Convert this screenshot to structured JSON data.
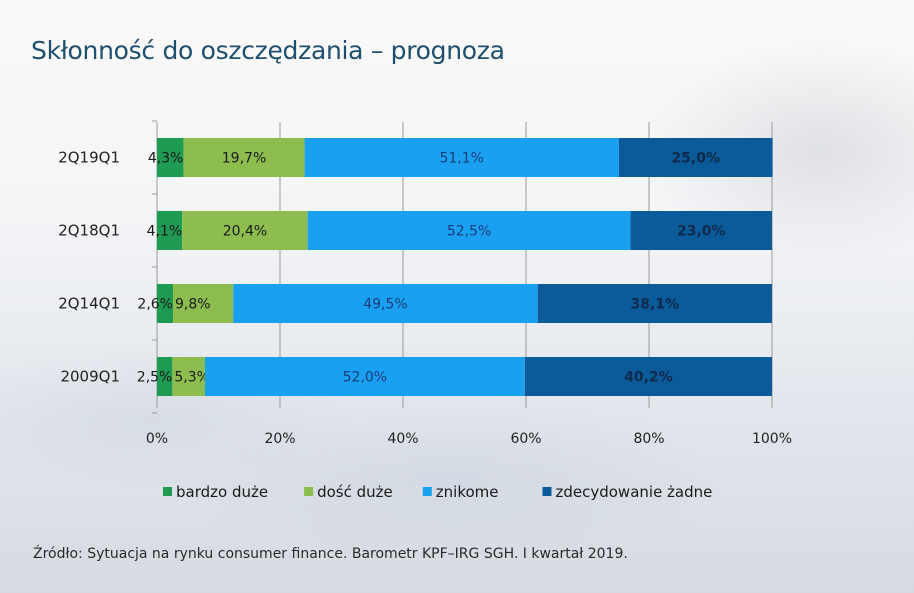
{
  "title": "Skłonność do oszczędzania – prognoza",
  "source": "Źródło: Sytuacja na rynku consumer finance. Barometr KPF–IRG SGH. I kwartał 2019.",
  "chart_data": {
    "type": "bar",
    "orientation": "horizontal",
    "stacked": "percent",
    "title": "Skłonność do oszczędzania – prognoza",
    "xlabel": "",
    "ylabel": "",
    "xlim": [
      0,
      100
    ],
    "x_ticks": [
      "0%",
      "20%",
      "40%",
      "60%",
      "80%",
      "100%"
    ],
    "grid": "vertical",
    "legend_position": "bottom",
    "categories": [
      "2Q19Q1",
      "2Q18Q1",
      "2Q14Q1",
      "2009Q1"
    ],
    "series": [
      {
        "name": "bardzo duże",
        "color": "#1f9a52",
        "values": [
          4.3,
          4.1,
          2.6,
          2.5
        ],
        "labels": [
          "4,3%",
          "4,1%",
          "2,6%",
          "2,5%"
        ]
      },
      {
        "name": "dość duże",
        "color": "#8dbd4f",
        "values": [
          19.7,
          20.4,
          9.8,
          5.3
        ],
        "labels": [
          "19,7%",
          "20,4%",
          "9,8%",
          "5,3%"
        ]
      },
      {
        "name": "znikome",
        "color": "#1aa0f0",
        "values": [
          51.1,
          52.5,
          49.5,
          52.0
        ],
        "labels": [
          "51,1%",
          "52,5%",
          "49,5%",
          "52,0%"
        ]
      },
      {
        "name": "zdecydowanie żadne",
        "color": "#0b5a99",
        "values": [
          25.0,
          23.0,
          38.1,
          40.2
        ],
        "labels": [
          "25,0%",
          "23,0%",
          "38,1%",
          "40,2%"
        ]
      }
    ]
  }
}
